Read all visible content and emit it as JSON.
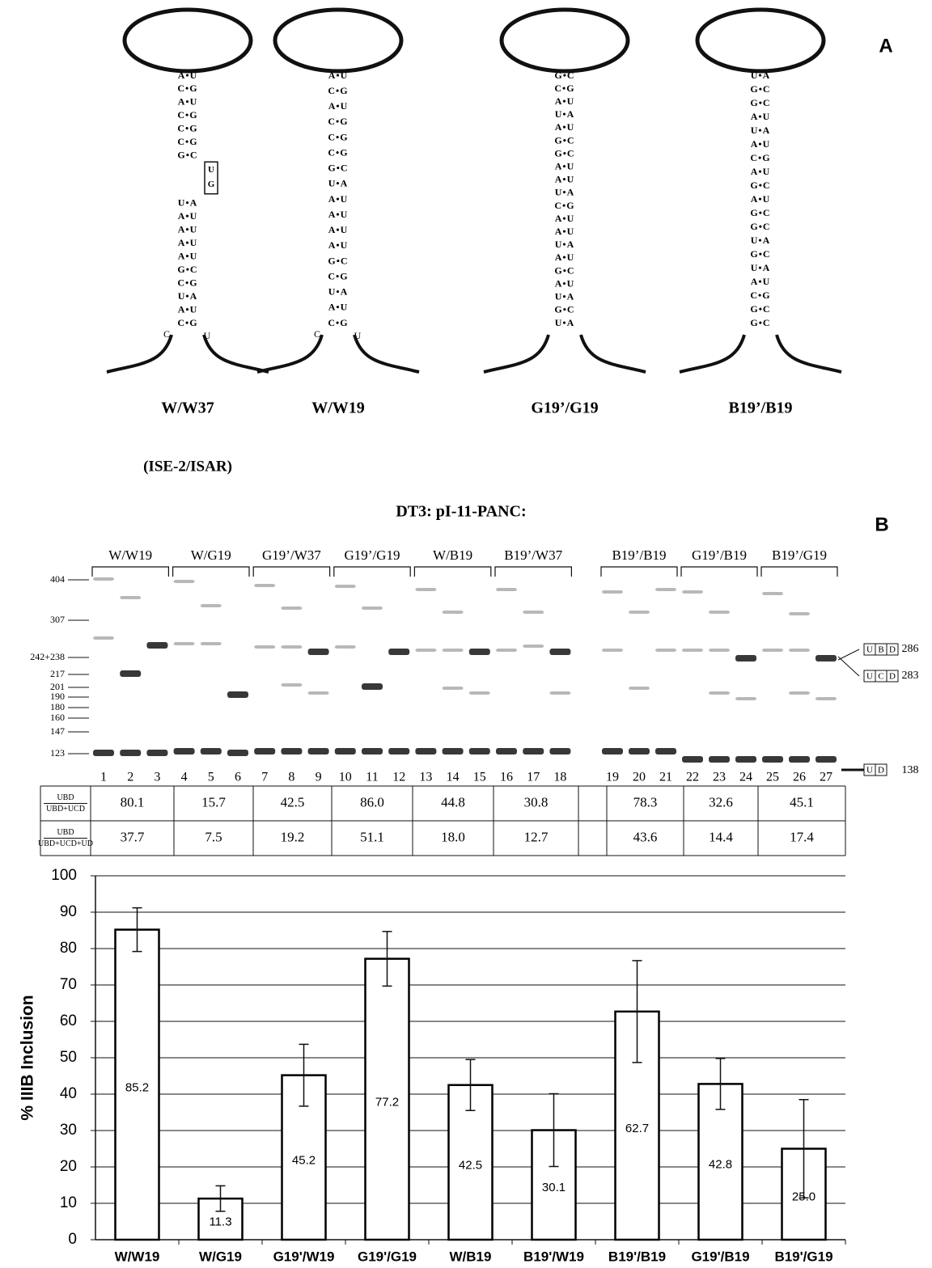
{
  "panel_a": {
    "letter": "A",
    "subtitle": "(ISE-2/ISAR)",
    "hairpins": [
      {
        "label": "W/W37",
        "stem": [
          "A•U",
          "C•G",
          "A•U",
          "C•G",
          "C•G",
          "C•G",
          "G•C",
          "U•A",
          "A•U",
          "A•U",
          "A•U",
          "A•U",
          "G•C",
          "C•G",
          "U•A",
          "A•U",
          "C•G"
        ],
        "bulge": [
          "U",
          "G"
        ],
        "bottom": [
          "C",
          "U"
        ]
      },
      {
        "label": "W/W19",
        "stem": [
          "A•U",
          "C•G",
          "A•U",
          "C•G",
          "C•G",
          "C•G",
          "G•C",
          "U•A",
          "A•U",
          "A•U",
          "A•U",
          "A•U",
          "G•C",
          "C•G",
          "U•A",
          "A•U",
          "C•G"
        ],
        "bottom": [
          "C",
          "U"
        ]
      },
      {
        "label": "G19’/G19",
        "stem": [
          "G•C",
          "C•G",
          "A•U",
          "U•A",
          "A•U",
          "G•C",
          "G•C",
          "A•U",
          "A•U",
          "U•A",
          "C•G",
          "A•U",
          "A•U",
          "U•A",
          "A•U",
          "G•C",
          "A•U",
          "U•A",
          "G•C",
          "U•A"
        ]
      },
      {
        "label": "B19’/B19",
        "stem": [
          "U•A",
          "G•C",
          "G•C",
          "A•U",
          "U•A",
          "A•U",
          "C•G",
          "A•U",
          "G•C",
          "A•U",
          "G•C",
          "G•C",
          "U•A",
          "G•C",
          "U•A",
          "A•U",
          "C•G",
          "G•C",
          "G•C"
        ]
      }
    ]
  },
  "gel": {
    "letter": "B",
    "title": "DT3: pI-11-PANC:",
    "groups": [
      "W/W19",
      "W/G19",
      "G19’/W37",
      "G19’/G19",
      "W/B19",
      "B19’/W37",
      "B19’/B19",
      "G19’/B19",
      "B19’/G19"
    ],
    "lanes": [
      "1",
      "2",
      "3",
      "4",
      "5",
      "6",
      "7",
      "8",
      "9",
      "10",
      "11",
      "12",
      "13",
      "14",
      "15",
      "16",
      "17",
      "18",
      "19",
      "20",
      "21",
      "22",
      "23",
      "24",
      "25",
      "26",
      "27"
    ],
    "markers": [
      "404",
      "307",
      "242+238",
      "217",
      "201",
      "190",
      "180",
      "160",
      "147",
      "123"
    ],
    "products": [
      {
        "parts": [
          "U",
          "B",
          "D"
        ],
        "size": "286"
      },
      {
        "parts": [
          "U",
          "C",
          "D"
        ],
        "size": "283"
      },
      {
        "parts": [
          "U",
          "D"
        ],
        "size": "138"
      }
    ]
  },
  "table": {
    "row_labels": [
      {
        "numerator": "UBD",
        "denominator": "UBD+UCD"
      },
      {
        "numerator": "UBD",
        "denominator": "UBD+UCD+UD"
      }
    ],
    "rows": [
      [
        "80.1",
        "15.7",
        "42.5",
        "86.0",
        "44.8",
        "30.8",
        "78.3",
        "32.6",
        "45.1"
      ],
      [
        "37.7",
        "7.5",
        "19.2",
        "51.1",
        "18.0",
        "12.7",
        "43.6",
        "14.4",
        "17.4"
      ]
    ]
  },
  "chart_data": {
    "type": "bar",
    "y_label": "% IIIB Inclusion",
    "categories": [
      "W/W19",
      "W/G19",
      "G19'/W19",
      "G19'/G19",
      "W/B19",
      "B19'/W19",
      "B19'/B19",
      "G19'/B19",
      "B19'/G19"
    ],
    "values": [
      85.2,
      11.3,
      45.2,
      77.2,
      42.5,
      30.1,
      62.7,
      42.8,
      25
    ],
    "value_labels": [
      "85.2",
      "11.3",
      "45.2",
      "77.2",
      "42.5",
      "30.1",
      "62.7",
      "42.8",
      "25.0"
    ],
    "errors": [
      6,
      3.5,
      8.5,
      7.5,
      7,
      10,
      14,
      7,
      13.5
    ],
    "color": "#ffffff",
    "edge_color": "#000000",
    "ylim": [
      0,
      100
    ],
    "yticks": [
      0,
      10,
      20,
      30,
      40,
      50,
      60,
      70,
      80,
      90,
      100
    ],
    "grid": true
  }
}
